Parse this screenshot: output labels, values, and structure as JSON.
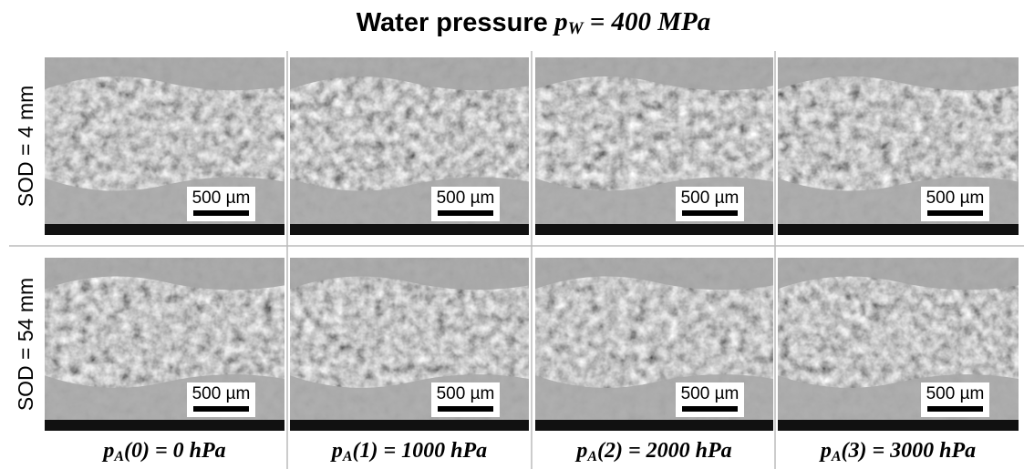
{
  "title": {
    "text": "Water pressure",
    "var": "p",
    "sub": "W",
    "eq": "= 400 MPa"
  },
  "rows": [
    {
      "label": "SOD = 4 mm",
      "scale_bars": [
        "500 µm",
        "500 µm",
        "500 µm",
        "500 µm"
      ]
    },
    {
      "label": "SOD = 54 mm",
      "scale_bars": [
        "500 µm",
        "500 µm",
        "500 µm",
        "500 µm"
      ]
    }
  ],
  "columns": [
    {
      "var": "p",
      "sub": "A",
      "eq": "(0) = 0 hPa"
    },
    {
      "var": "p",
      "sub": "A",
      "eq": "(1) = 1000 hPa"
    },
    {
      "var": "p",
      "sub": "A",
      "eq": "(2) = 2000 hPa"
    },
    {
      "var": "p",
      "sub": "A",
      "eq": "(3) = 3000 hPa"
    }
  ]
}
